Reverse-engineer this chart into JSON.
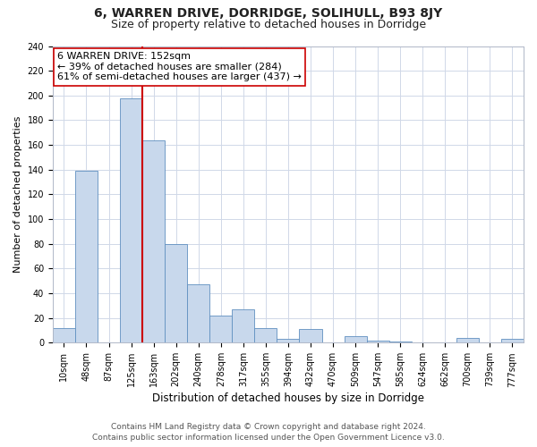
{
  "title": "6, WARREN DRIVE, DORRIDGE, SOLIHULL, B93 8JY",
  "subtitle": "Size of property relative to detached houses in Dorridge",
  "xlabel": "Distribution of detached houses by size in Dorridge",
  "ylabel": "Number of detached properties",
  "bar_labels": [
    "10sqm",
    "48sqm",
    "87sqm",
    "125sqm",
    "163sqm",
    "202sqm",
    "240sqm",
    "278sqm",
    "317sqm",
    "355sqm",
    "394sqm",
    "432sqm",
    "470sqm",
    "509sqm",
    "547sqm",
    "585sqm",
    "624sqm",
    "662sqm",
    "700sqm",
    "739sqm",
    "777sqm"
  ],
  "bar_values": [
    12,
    139,
    0,
    198,
    164,
    80,
    47,
    22,
    27,
    12,
    3,
    11,
    0,
    5,
    2,
    1,
    0,
    0,
    4,
    0,
    3
  ],
  "bar_color": "#c8d8ec",
  "bar_edge_color": "#6090c0",
  "vline_color": "#cc0000",
  "vline_index": 3.5,
  "annotation_title": "6 WARREN DRIVE: 152sqm",
  "annotation_line1": "← 39% of detached houses are smaller (284)",
  "annotation_line2": "61% of semi-detached houses are larger (437) →",
  "annotation_box_facecolor": "#ffffff",
  "annotation_box_edgecolor": "#cc0000",
  "ylim": [
    0,
    240
  ],
  "yticks": [
    0,
    20,
    40,
    60,
    80,
    100,
    120,
    140,
    160,
    180,
    200,
    220,
    240
  ],
  "footer1": "Contains HM Land Registry data © Crown copyright and database right 2024.",
  "footer2": "Contains public sector information licensed under the Open Government Licence v3.0.",
  "title_fontsize": 10,
  "subtitle_fontsize": 9,
  "xlabel_fontsize": 8.5,
  "ylabel_fontsize": 8,
  "tick_fontsize": 7,
  "annotation_fontsize": 8,
  "footer_fontsize": 6.5,
  "grid_color": "#d0d8e8"
}
